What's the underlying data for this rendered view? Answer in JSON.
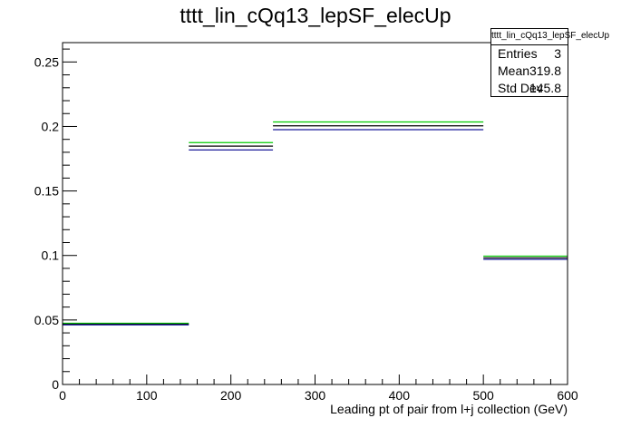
{
  "chart_data": {
    "type": "histogram-step",
    "title": "tttt_lin_cQq13_lepSF_elecUp",
    "xlabel": "Leading pt of pair from l+j collection (GeV)",
    "ylabel": "",
    "xlim": [
      0,
      600
    ],
    "ylim": [
      0,
      0.265
    ],
    "x_ticks": [
      "0",
      "100",
      "200",
      "300",
      "400",
      "500",
      "600"
    ],
    "y_ticks": [
      "0",
      "0.05",
      "0.1",
      "0.15",
      "0.2",
      "0.25"
    ],
    "bins": [
      {
        "x_low": 0,
        "x_high": 150
      },
      {
        "x_low": 150,
        "x_high": 250
      },
      {
        "x_low": 250,
        "x_high": 500
      },
      {
        "x_low": 500,
        "x_high": 600
      }
    ],
    "series": [
      {
        "color": "#00cc00",
        "values": [
          0.0475,
          0.1875,
          0.2035,
          0.0995
        ]
      },
      {
        "color": "#000000",
        "values": [
          0.0468,
          0.1848,
          0.2005,
          0.0982
        ]
      },
      {
        "color": "#1a1a99",
        "values": [
          0.0462,
          0.1818,
          0.1975,
          0.097
        ]
      }
    ],
    "stats": {
      "name": "tttt_lin_cQq13_lepSF_elecUp",
      "rows": [
        {
          "label": "Entries",
          "value": "3"
        },
        {
          "label": "Mean",
          "value": "319.8"
        },
        {
          "label": "Std Dev",
          "value": "145.8"
        }
      ]
    }
  }
}
